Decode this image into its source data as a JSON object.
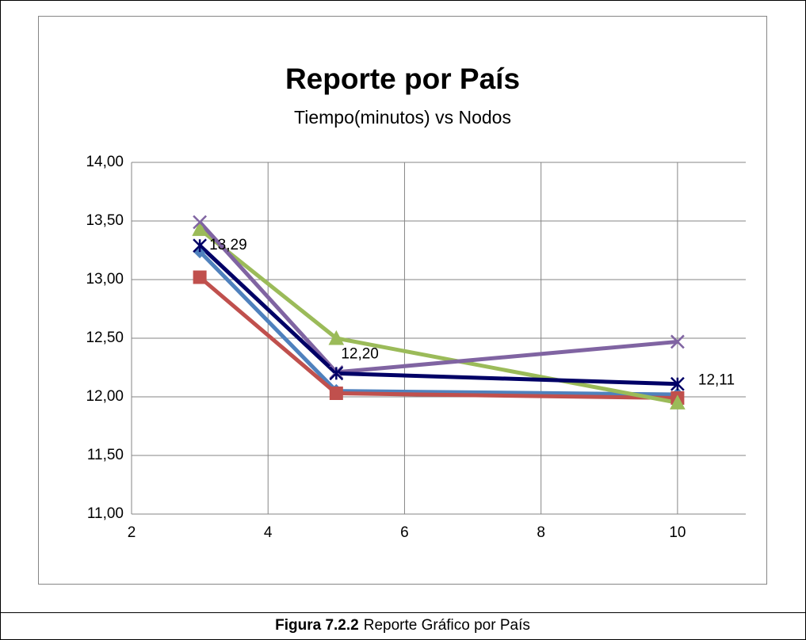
{
  "chart_data": {
    "type": "line",
    "title": "Reporte por País",
    "subtitle": "Tiempo(minutos) vs Nodos",
    "x": [
      3,
      5,
      10
    ],
    "xlim": [
      2,
      11
    ],
    "xticks": [
      2,
      4,
      6,
      8,
      10
    ],
    "ylim": [
      11,
      14
    ],
    "yticks": [
      {
        "value": 11,
        "label": "11,00"
      },
      {
        "value": 11.5,
        "label": "11,50"
      },
      {
        "value": 12,
        "label": "12,00"
      },
      {
        "value": 12.5,
        "label": "12,50"
      },
      {
        "value": 13,
        "label": "13,00"
      },
      {
        "value": 13.5,
        "label": "13,50"
      },
      {
        "value": 14,
        "label": "14,00"
      }
    ],
    "grid": true,
    "series": [
      {
        "color": "#4f81bd",
        "marker": "diamond",
        "values": [
          13.24,
          12.05,
          12.02
        ]
      },
      {
        "color": "#c0504d",
        "marker": "square",
        "values": [
          13.02,
          12.03,
          11.99
        ]
      },
      {
        "color": "#9bbb59",
        "marker": "triangle",
        "values": [
          13.43,
          12.5,
          11.95
        ]
      },
      {
        "color": "#8064a2",
        "marker": "x",
        "values": [
          13.49,
          12.21,
          12.47
        ]
      },
      {
        "color": "#000066",
        "marker": "star",
        "values": [
          13.29,
          12.2,
          12.11
        ],
        "value_labels": [
          "13,29",
          "12,20",
          "12,11"
        ]
      }
    ]
  },
  "caption": {
    "label": "Figura 7.2.2",
    "text": "Reporte Gráfico por País"
  }
}
